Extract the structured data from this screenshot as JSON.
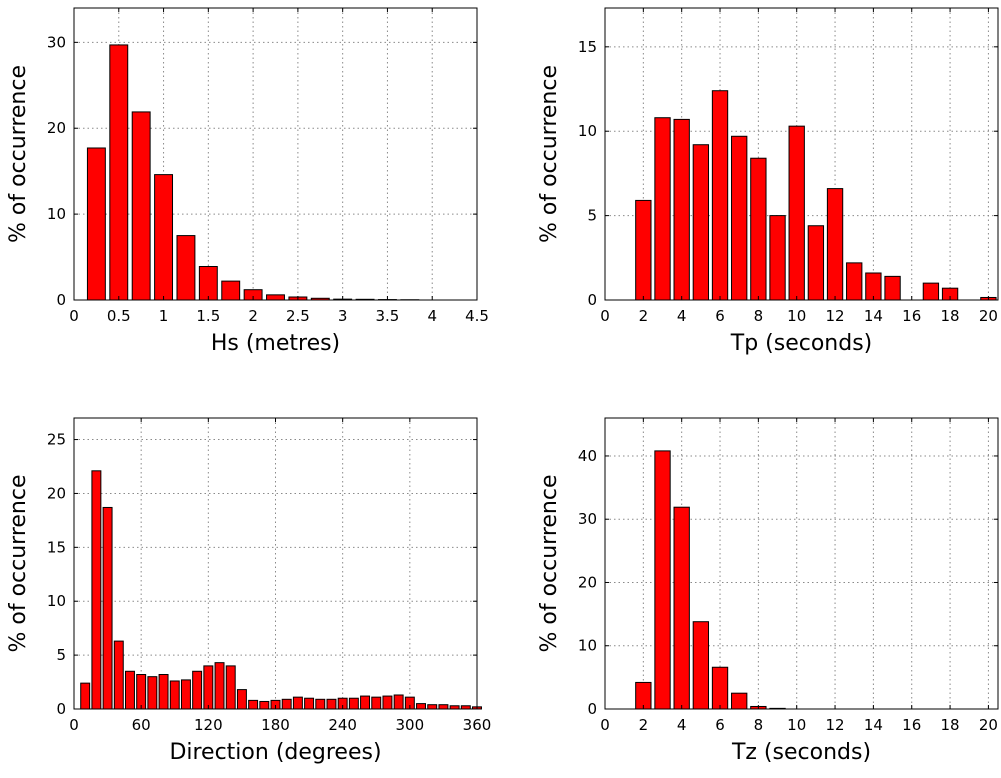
{
  "chart_data": [
    {
      "id": "hs",
      "type": "bar",
      "xlabel": "Hs (metres)",
      "ylabel": "% of occurrence",
      "xlim": [
        0,
        4.5
      ],
      "ylim": [
        0,
        34
      ],
      "xticks": [
        0,
        0.5,
        1,
        1.5,
        2,
        2.5,
        3,
        3.5,
        4,
        4.5
      ],
      "xtick_labels": [
        "0",
        "0.5",
        "1",
        "1.5",
        "2",
        "2.5",
        "3",
        "3.5",
        "4",
        "4.5"
      ],
      "yticks": [
        0,
        10,
        20,
        30
      ],
      "bar_width": 0.2,
      "x": [
        0.25,
        0.5,
        0.75,
        1.0,
        1.25,
        1.5,
        1.75,
        2.0,
        2.25,
        2.5,
        2.75,
        3.0,
        3.25,
        3.5,
        3.75
      ],
      "values": [
        17.7,
        29.7,
        21.9,
        14.6,
        7.5,
        3.9,
        2.2,
        1.2,
        0.6,
        0.35,
        0.2,
        0.1,
        0.08,
        0.05,
        0.03
      ],
      "grid": true,
      "color": "#ff0000"
    },
    {
      "id": "tp",
      "type": "bar",
      "xlabel": "Tp (seconds)",
      "ylabel": "% of occurrence",
      "xlim": [
        0,
        20.5
      ],
      "ylim": [
        0,
        17.3
      ],
      "xticks": [
        0,
        2,
        4,
        6,
        8,
        10,
        12,
        14,
        16,
        18,
        20
      ],
      "xtick_labels": [
        "0",
        "2",
        "4",
        "6",
        "8",
        "10",
        "12",
        "14",
        "16",
        "18",
        "20"
      ],
      "yticks": [
        0,
        5,
        10,
        15
      ],
      "bar_width": 0.8,
      "x": [
        2,
        3,
        4,
        5,
        6,
        7,
        8,
        9,
        10,
        11,
        12,
        13,
        14,
        15,
        16,
        17,
        18,
        19,
        20
      ],
      "values": [
        5.9,
        10.8,
        10.7,
        9.2,
        12.4,
        9.7,
        8.4,
        5.0,
        10.3,
        4.4,
        6.6,
        2.2,
        1.6,
        1.4,
        0,
        1.0,
        0.7,
        0,
        0.15
      ],
      "grid": true,
      "color": "#ff0000"
    },
    {
      "id": "direction",
      "type": "bar",
      "xlabel": "Direction (degrees)",
      "ylabel": "% of occurrence",
      "xlim": [
        0,
        360
      ],
      "ylim": [
        0,
        27
      ],
      "xticks": [
        0,
        60,
        120,
        180,
        240,
        300,
        360
      ],
      "xtick_labels": [
        "0",
        "60",
        "120",
        "180",
        "240",
        "300",
        "360"
      ],
      "yticks": [
        0,
        5,
        10,
        15,
        20,
        25
      ],
      "bar_width": 8,
      "x": [
        10,
        20,
        30,
        40,
        50,
        60,
        70,
        80,
        90,
        100,
        110,
        120,
        130,
        140,
        150,
        160,
        170,
        180,
        190,
        200,
        210,
        220,
        230,
        240,
        250,
        260,
        270,
        280,
        290,
        300,
        310,
        320,
        330,
        340,
        350,
        360
      ],
      "values": [
        2.4,
        22.1,
        18.7,
        6.3,
        3.5,
        3.2,
        3.0,
        3.2,
        2.6,
        2.7,
        3.5,
        4.0,
        4.3,
        4.0,
        1.8,
        0.8,
        0.7,
        0.8,
        0.9,
        1.1,
        1.0,
        0.9,
        0.9,
        1.0,
        1.0,
        1.2,
        1.1,
        1.2,
        1.3,
        1.1,
        0.5,
        0.4,
        0.4,
        0.3,
        0.3,
        0.2
      ],
      "grid": true,
      "color": "#ff0000"
    },
    {
      "id": "tz",
      "type": "bar",
      "xlabel": "Tz (seconds)",
      "ylabel": "% of occurrence",
      "xlim": [
        0,
        20.5
      ],
      "ylim": [
        0,
        46
      ],
      "xticks": [
        0,
        2,
        4,
        6,
        8,
        10,
        12,
        14,
        16,
        18,
        20
      ],
      "xtick_labels": [
        "0",
        "2",
        "4",
        "6",
        "8",
        "10",
        "12",
        "14",
        "16",
        "18",
        "20"
      ],
      "yticks": [
        0,
        10,
        20,
        30,
        40
      ],
      "bar_width": 0.8,
      "x": [
        2,
        3,
        4,
        5,
        6,
        7,
        8,
        9
      ],
      "values": [
        4.2,
        40.8,
        31.9,
        13.8,
        6.6,
        2.5,
        0.4,
        0.1
      ],
      "grid": true,
      "color": "#ff0000"
    }
  ]
}
